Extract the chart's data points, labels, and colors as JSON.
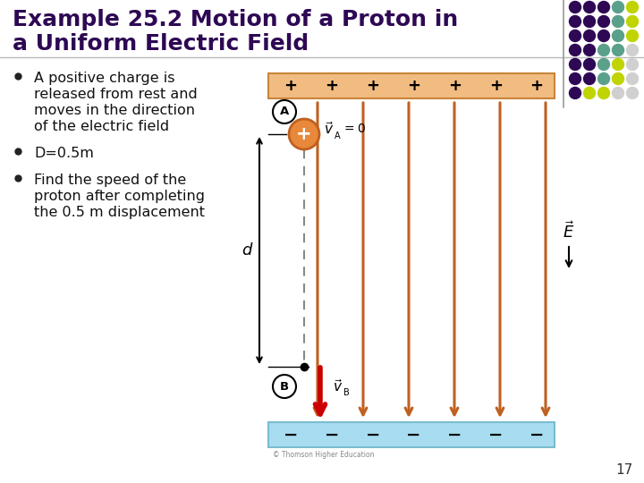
{
  "title_line1": "Example 25.2 Motion of a Proton in",
  "title_line2": "a Uniform Electric Field",
  "title_color": "#2E0854",
  "bullet1_line1": "A positive charge is",
  "bullet1_line2": "released from rest and",
  "bullet1_line3": "moves in the direction",
  "bullet1_line4": "of the electric field",
  "bullet2": "D=0.5m",
  "bullet3_line1": "Find the speed of the",
  "bullet3_line2": "proton after completing",
  "bullet3_line3": "the 0.5 m displacement",
  "bg_color": "#FFFFFF",
  "slide_number": "17",
  "top_plate_fill": "#F0BC82",
  "top_plate_edge": "#C8853A",
  "bottom_plate_fill": "#A8DCF0",
  "bottom_plate_edge": "#7ABCD0",
  "field_line_color": "#C06020",
  "proton_fill": "#E8883A",
  "proton_edge": "#C06020",
  "arrow_red": "#CC0000",
  "dot_cols": [
    [
      "#2E0854",
      "#2E0854",
      "#2E0854",
      "#2E0854",
      "#2E0854",
      "#2E0854",
      "#2E0854"
    ],
    [
      "#2E0854",
      "#2E0854",
      "#2E0854",
      "#2E0854",
      "#2E0854",
      "#2E0854",
      "#BFD400"
    ],
    [
      "#2E0854",
      "#2E0854",
      "#2E0854",
      "#5BA08A",
      "#5BA08A",
      "#5BA08A",
      "#BFD400"
    ],
    [
      "#5BA08A",
      "#5BA08A",
      "#5BA08A",
      "#5BA08A",
      "#BFD400",
      "#BFD400",
      "#D0D0D0"
    ],
    [
      "#BFD400",
      "#BFD400",
      "#BFD400",
      "#D0D0D0",
      "#D0D0D0",
      "#D0D0D0",
      "#D0D0D0"
    ]
  ],
  "copyright_text": "© Thomson Higher Education"
}
